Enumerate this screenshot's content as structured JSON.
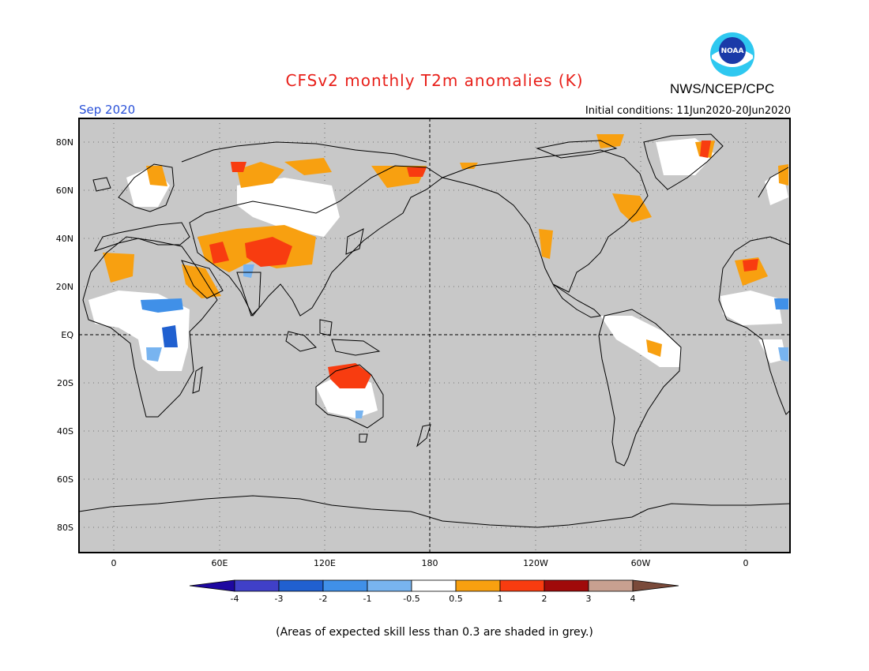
{
  "header": {
    "title": "CFSv2 monthly T2m anomalies (K)",
    "organization": "NWS/NCEP/CPC",
    "logo_text": "NOAA",
    "valid_month": "Sep 2020",
    "initial_conditions": "Initial conditions: 11Jun2020-20Jun2020"
  },
  "map": {
    "projection": "equirectangular",
    "lat_labels": [
      "80N",
      "60N",
      "40N",
      "20N",
      "EQ",
      "20S",
      "40S",
      "60S",
      "80S"
    ],
    "lon_labels": [
      "0",
      "60E",
      "120E",
      "180",
      "120W",
      "60W",
      "0"
    ],
    "background_color": "#c8c8c8",
    "coastline_color": "#000000"
  },
  "colorbar": {
    "tick_labels": [
      "-4",
      "-3",
      "-2",
      "-1",
      "-0.5",
      "0.5",
      "1",
      "2",
      "3",
      "4"
    ],
    "colors": [
      "#1e08a0",
      "#4040c8",
      "#2060d0",
      "#4090e8",
      "#78b4f0",
      "#ffffff",
      "#f8a010",
      "#f83c10",
      "#a00a0a",
      "#c8a090",
      "#7a4a3a"
    ]
  },
  "footnote": "(Areas of expected skill less than 0.3 are shaded in grey.)"
}
